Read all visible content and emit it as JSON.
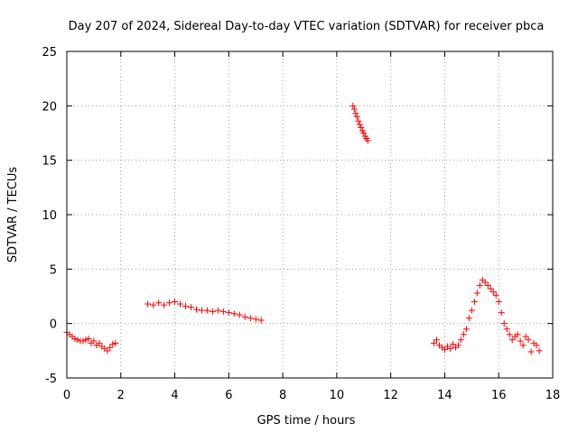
{
  "chart_data": {
    "type": "scatter",
    "title": "Day 207 of 2024, Sidereal Day-to-day VTEC variation (SDTVAR) for receiver pbca",
    "xlabel": "GPS time / hours",
    "ylabel": "SDTVAR / TECUs",
    "xlim": [
      0,
      18
    ],
    "ylim": [
      -5,
      25
    ],
    "xticks": [
      0,
      2,
      4,
      6,
      8,
      10,
      12,
      14,
      16,
      18
    ],
    "yticks": [
      -5,
      0,
      5,
      10,
      15,
      20,
      25
    ],
    "grid": true,
    "marker": "+",
    "color": "#ff0000",
    "series": [
      {
        "name": "segment-1",
        "x": [
          0.0,
          0.1,
          0.2,
          0.3,
          0.4,
          0.5,
          0.6,
          0.7,
          0.8,
          0.9,
          1.0,
          1.1,
          1.2,
          1.3,
          1.4,
          1.5,
          1.6,
          1.7,
          1.8
        ],
        "y": [
          -0.8,
          -1.0,
          -1.2,
          -1.4,
          -1.5,
          -1.6,
          -1.6,
          -1.5,
          -1.4,
          -1.8,
          -1.6,
          -2.0,
          -1.8,
          -2.1,
          -2.3,
          -2.5,
          -2.2,
          -1.9,
          -1.8
        ]
      },
      {
        "name": "segment-2",
        "x": [
          3.0,
          3.2,
          3.4,
          3.6,
          3.8,
          4.0,
          4.2,
          4.4,
          4.6,
          4.8,
          5.0,
          5.2,
          5.4,
          5.6,
          5.8,
          6.0,
          6.2,
          6.4,
          6.6,
          6.8,
          7.0,
          7.2
        ],
        "y": [
          1.8,
          1.7,
          1.9,
          1.7,
          1.9,
          2.0,
          1.8,
          1.6,
          1.5,
          1.3,
          1.2,
          1.2,
          1.1,
          1.2,
          1.1,
          1.0,
          0.9,
          0.8,
          0.6,
          0.5,
          0.4,
          0.3
        ]
      },
      {
        "name": "segment-3",
        "x": [
          10.6,
          10.65,
          10.7,
          10.75,
          10.8,
          10.85,
          10.9,
          10.95,
          11.0,
          11.05,
          11.1,
          11.15
        ],
        "y": [
          20.0,
          19.7,
          19.3,
          19.0,
          18.6,
          18.3,
          18.0,
          17.7,
          17.5,
          17.2,
          17.0,
          16.8
        ]
      },
      {
        "name": "segment-4",
        "x": [
          13.6,
          13.7,
          13.8,
          13.9,
          14.0,
          14.1,
          14.2,
          14.3,
          14.4,
          14.5,
          14.6,
          14.7,
          14.8,
          14.9,
          15.0,
          15.1,
          15.2,
          15.3,
          15.4,
          15.5,
          15.6,
          15.7,
          15.8,
          15.9,
          16.0,
          16.1,
          16.2,
          16.3,
          16.4,
          16.5,
          16.6,
          16.7,
          16.8,
          16.9,
          17.0,
          17.1,
          17.2,
          17.3,
          17.4,
          17.5
        ],
        "y": [
          -1.8,
          -1.5,
          -2.0,
          -2.2,
          -2.4,
          -2.1,
          -2.3,
          -1.9,
          -2.2,
          -2.0,
          -1.5,
          -1.0,
          -0.5,
          0.5,
          1.2,
          2.0,
          2.8,
          3.5,
          4.0,
          3.8,
          3.5,
          3.2,
          2.9,
          2.6,
          2.0,
          1.0,
          0.0,
          -0.5,
          -1.0,
          -1.5,
          -1.2,
          -1.0,
          -1.6,
          -2.0,
          -1.2,
          -1.5,
          -2.6,
          -1.8,
          -2.0,
          -2.5
        ]
      }
    ]
  }
}
